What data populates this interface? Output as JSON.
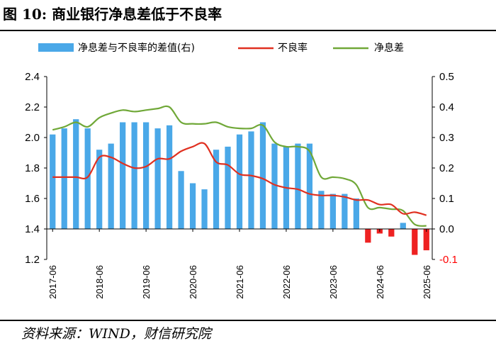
{
  "figure": {
    "title": "图 10:  商业银行净息差低于不良率",
    "source": "资料来源：WIND，财信研究院"
  },
  "chart_data": {
    "type": "bar+line",
    "title": "",
    "colors": {
      "bar_pos": "#4aa8e8",
      "bar_neg": "#ee2222",
      "npl": "#e03020",
      "nim": "#70a838"
    },
    "left_axis": {
      "ylim": [
        1.2,
        2.4
      ],
      "ticks": [
        "1.2",
        "1.4",
        "1.6",
        "1.8",
        "2.0",
        "2.2",
        "2.4"
      ]
    },
    "right_axis": {
      "ylim": [
        -0.1,
        0.5
      ],
      "ticks": [
        "-0.1",
        "0.0",
        "0.1",
        "0.2",
        "0.3",
        "0.4",
        "0.5"
      ]
    },
    "x_ticks": [
      "2017-06",
      "2018-06",
      "2019-06",
      "2020-06",
      "2021-06",
      "2022-06",
      "2023-06",
      "2024-06",
      "2025-06"
    ],
    "x_tick_positions": [
      0,
      4,
      8,
      12,
      16,
      20,
      24,
      28,
      32
    ],
    "quarters": [
      "2017-06",
      "2017-09",
      "2017-12",
      "2018-03",
      "2018-06",
      "2018-09",
      "2018-12",
      "2019-03",
      "2019-06",
      "2019-09",
      "2019-12",
      "2020-03",
      "2020-06",
      "2020-09",
      "2020-12",
      "2021-03",
      "2021-06",
      "2021-09",
      "2021-12",
      "2022-03",
      "2022-06",
      "2022-09",
      "2022-12",
      "2023-03",
      "2023-06",
      "2023-09",
      "2023-12",
      "2024-03",
      "2024-06",
      "2024-09",
      "2024-12",
      "2025-03",
      "2025-06"
    ],
    "legend": {
      "bar": "净息差与不良率的差值(右)",
      "npl": "不良率",
      "nim": "净息差"
    },
    "series": [
      {
        "name": "净息差与不良率的差值(右)",
        "kind": "bar",
        "axis": "right",
        "values": [
          0.31,
          0.33,
          0.36,
          0.33,
          0.26,
          0.28,
          0.35,
          0.35,
          0.35,
          0.33,
          0.34,
          0.19,
          0.15,
          0.13,
          0.26,
          0.27,
          0.31,
          0.32,
          0.35,
          0.28,
          0.27,
          0.28,
          0.28,
          0.125,
          0.115,
          0.115,
          0.1,
          -0.045,
          -0.015,
          -0.025,
          0.02,
          -0.085,
          -0.07
        ]
      },
      {
        "name": "不良率",
        "kind": "line",
        "axis": "left",
        "values": [
          1.74,
          1.74,
          1.74,
          1.74,
          1.87,
          1.87,
          1.83,
          1.8,
          1.81,
          1.86,
          1.86,
          1.91,
          1.94,
          1.96,
          1.84,
          1.82,
          1.76,
          1.75,
          1.73,
          1.69,
          1.67,
          1.66,
          1.63,
          1.62,
          1.62,
          1.61,
          1.59,
          1.59,
          1.56,
          1.56,
          1.5,
          1.51,
          1.49
        ]
      },
      {
        "name": "净息差",
        "kind": "line",
        "axis": "left",
        "values": [
          2.05,
          2.07,
          2.1,
          2.07,
          2.13,
          2.16,
          2.18,
          2.17,
          2.18,
          2.19,
          2.2,
          2.1,
          2.09,
          2.09,
          2.1,
          2.07,
          2.06,
          2.06,
          2.08,
          1.97,
          1.94,
          1.94,
          1.91,
          1.74,
          1.74,
          1.73,
          1.69,
          1.54,
          1.54,
          1.53,
          1.52,
          1.43,
          1.42
        ]
      }
    ]
  }
}
